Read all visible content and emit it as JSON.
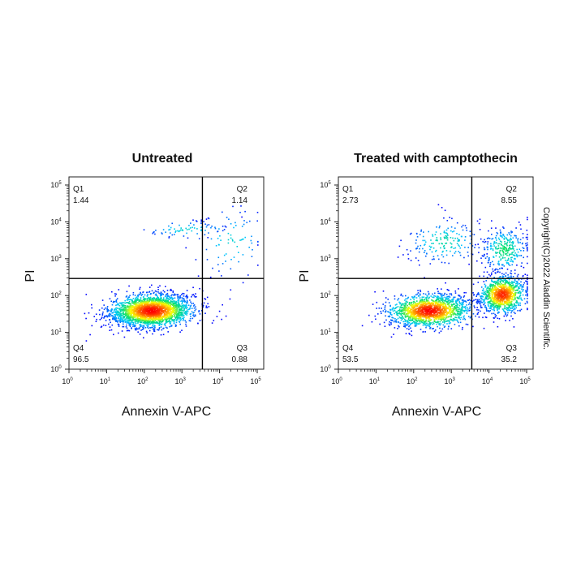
{
  "chart_data": [
    {
      "type": "scatter",
      "title": "Untreated",
      "xlabel": "Annexin V-APC",
      "ylabel": "PI",
      "x_scale": "log",
      "y_scale": "log",
      "xlim": [
        1,
        100000
      ],
      "ylim": [
        1,
        100000
      ],
      "x_ticks": [
        1,
        10,
        100,
        1000,
        10000,
        100000
      ],
      "y_ticks": [
        1,
        10,
        100,
        1000,
        10000,
        100000
      ],
      "gate": {
        "x": 3500,
        "y": 290
      },
      "quadrants": [
        {
          "name": "Q1",
          "value": "1.44",
          "position": "top-left"
        },
        {
          "name": "Q2",
          "value": "1.14",
          "position": "top-right"
        },
        {
          "name": "Q3",
          "value": "0.88",
          "position": "bottom-right"
        },
        {
          "name": "Q4",
          "value": "96.5",
          "position": "bottom-left"
        }
      ],
      "clusters": [
        {
          "center": [
            150,
            40
          ],
          "spread_log": [
            0.55,
            0.22
          ],
          "weight": 0.94
        },
        {
          "center": [
            1200,
            6500
          ],
          "spread_log": [
            0.6,
            0.12
          ],
          "weight": 0.03
        },
        {
          "center": [
            20000,
            3000
          ],
          "spread_log": [
            0.5,
            0.5
          ],
          "weight": 0.03
        }
      ],
      "point_count": 2600,
      "density_colormap": [
        "#0000ff",
        "#00c8ff",
        "#00e070",
        "#ffff00",
        "#ff8000",
        "#ff0000"
      ]
    },
    {
      "type": "scatter",
      "title": "Treated with camptothecin",
      "xlabel": "Annexin V-APC",
      "ylabel": "PI",
      "x_scale": "log",
      "y_scale": "log",
      "xlim": [
        1,
        100000
      ],
      "ylim": [
        1,
        100000
      ],
      "x_ticks": [
        1,
        10,
        100,
        1000,
        10000,
        100000
      ],
      "y_ticks": [
        1,
        10,
        100,
        1000,
        10000,
        100000
      ],
      "gate": {
        "x": 3500,
        "y": 290
      },
      "quadrants": [
        {
          "name": "Q1",
          "value": "2.73",
          "position": "top-left"
        },
        {
          "name": "Q2",
          "value": "8.55",
          "position": "top-right"
        },
        {
          "name": "Q3",
          "value": "35.2",
          "position": "bottom-right"
        },
        {
          "name": "Q4",
          "value": "53.5",
          "position": "bottom-left"
        }
      ],
      "clusters": [
        {
          "center": [
            250,
            40
          ],
          "spread_log": [
            0.55,
            0.22
          ],
          "weight": 0.5
        },
        {
          "center": [
            22000,
            110
          ],
          "spread_log": [
            0.3,
            0.25
          ],
          "weight": 0.34
        },
        {
          "center": [
            25000,
            1800
          ],
          "spread_log": [
            0.3,
            0.3
          ],
          "weight": 0.1
        },
        {
          "center": [
            600,
            3000
          ],
          "spread_log": [
            0.5,
            0.3
          ],
          "weight": 0.06
        }
      ],
      "point_count": 3200,
      "density_colormap": [
        "#0000ff",
        "#00c8ff",
        "#00e070",
        "#ffff00",
        "#ff8000",
        "#ff0000"
      ]
    }
  ],
  "copyright": "Copyright(C)2022 Aladdin Scientific."
}
